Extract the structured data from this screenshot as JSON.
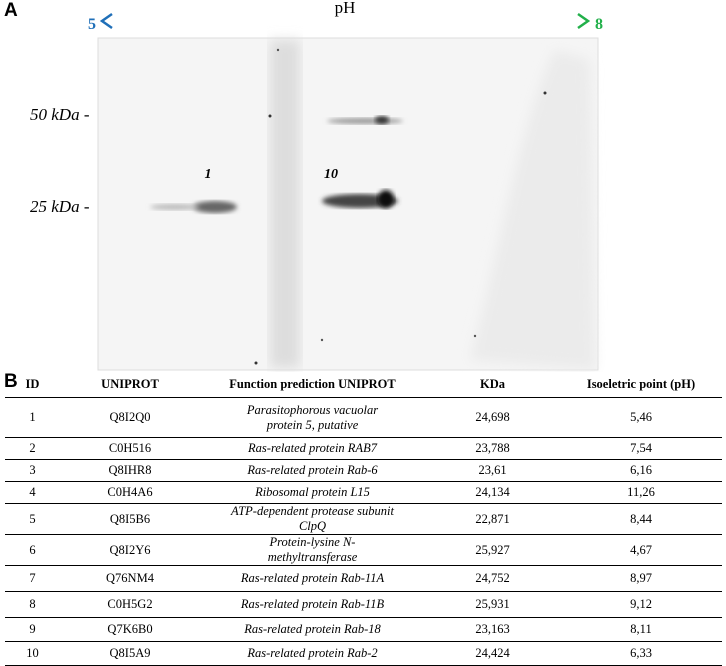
{
  "panel_a": {
    "label": "A",
    "ph_label": "pH",
    "ph_start": "5",
    "ph_end": "8",
    "markers": [
      "50 kDa -",
      "25 kDa -"
    ],
    "spots": [
      "1",
      "10"
    ]
  },
  "panel_b": {
    "label": "B",
    "table": {
      "headers": [
        "ID",
        "UNIPROT",
        "Function prediction UNIPROT",
        "KDa",
        "Isoeletric point (pH)"
      ],
      "rows": [
        [
          "1",
          "Q8I2Q0",
          "Parasitophorous vacuolar protein 5, putative",
          "24,698",
          "5,46"
        ],
        [
          "2",
          "C0H516",
          "Ras-related protein RAB7",
          "23,788",
          "7,54"
        ],
        [
          "3",
          "Q8IHR8",
          "Ras-related protein Rab-6",
          "23,61",
          "6,16"
        ],
        [
          "4",
          "C0H4A6",
          "Ribosomal protein L15",
          "24,134",
          "11,26"
        ],
        [
          "5",
          "Q8I5B6",
          "ATP-dependent protease subunit ClpQ",
          "22,871",
          "8,44"
        ],
        [
          "6",
          "Q8I2Y6",
          "Protein-lysine N-methyltransferase",
          "25,927",
          "4,67"
        ],
        [
          "7",
          "Q76NM4",
          "Ras-related protein Rab-11A",
          "24,752",
          "8,97"
        ],
        [
          "8",
          "C0H5G2",
          "Ras-related protein Rab-11B",
          "25,931",
          "9,12"
        ],
        [
          "9",
          "Q7K6B0",
          "Ras-related protein Rab-18",
          "23,163",
          "8,11"
        ],
        [
          "10",
          "Q8I5A9",
          "Ras-related protein Rab-2",
          "24,424",
          "6,33"
        ]
      ]
    }
  }
}
